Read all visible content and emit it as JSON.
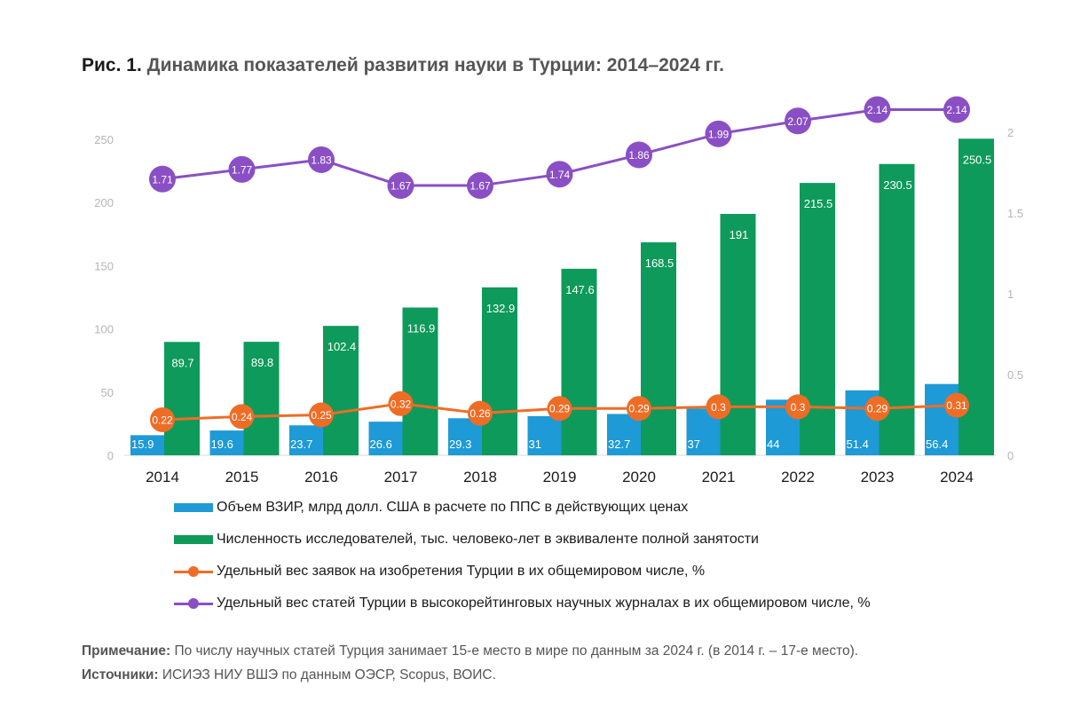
{
  "title": {
    "prefix": "Рис. 1.",
    "text": "Динамика показателей развития науки в Турции: 2014–2024 гг."
  },
  "chart_data": {
    "type": "bar",
    "categories": [
      "2014",
      "2015",
      "2016",
      "2017",
      "2018",
      "2019",
      "2020",
      "2021",
      "2022",
      "2023",
      "2024"
    ],
    "left_axis": {
      "ylim": [
        0,
        250
      ],
      "ticks": [
        "0",
        "50",
        "100",
        "150",
        "200",
        "250"
      ]
    },
    "right_axis": {
      "ylim": [
        0,
        2
      ],
      "ticks": [
        "0",
        "0.5",
        "1",
        "1.5",
        "2"
      ]
    },
    "grid": false,
    "legend_position": "bottom",
    "series": [
      {
        "name": "Объем ВЗИР, млрд долл. США в расчете по ППС в действующих ценах",
        "type": "bar",
        "axis": "left",
        "color": "#1e9ad6",
        "values": [
          15.9,
          19.6,
          23.7,
          26.6,
          29.3,
          31,
          32.7,
          37,
          44,
          51.4,
          56.4
        ],
        "labels": [
          "15.9",
          "19.6",
          "23.7",
          "26.6",
          "29.3",
          "31",
          "32.7",
          "37",
          "44",
          "51.4",
          "56.4"
        ]
      },
      {
        "name": "Численность исследователей, тыс. человеко-лет в эквиваленте полной занятости",
        "type": "bar",
        "axis": "left",
        "color": "#0e9a5a",
        "values": [
          89.7,
          89.8,
          102.4,
          116.9,
          132.9,
          147.6,
          168.5,
          191,
          215.5,
          230.5,
          250.5
        ],
        "labels": [
          "89.7",
          "89.8",
          "102.4",
          "116.9",
          "132.9",
          "147.6",
          "168.5",
          "191",
          "215.5",
          "230.5",
          "250.5"
        ]
      },
      {
        "name": "Удельный вес заявок на изобретения Турции в их общемировом числе, %",
        "type": "line",
        "axis": "right",
        "color": "#ee6d26",
        "values": [
          0.22,
          0.24,
          0.25,
          0.32,
          0.26,
          0.29,
          0.29,
          0.3,
          0.3,
          0.29,
          0.31
        ],
        "labels": [
          "0.22",
          "0.24",
          "0.25",
          "0.32",
          "0.26",
          "0.29",
          "0.29",
          "0.3",
          "0.3",
          "0.29",
          "0.31"
        ]
      },
      {
        "name": "Удельный вес статей Турции в высокорейтинговых научных журналах в их общемировом числе, %",
        "type": "line",
        "axis": "right",
        "color": "#8a4fc4",
        "values": [
          1.71,
          1.77,
          1.83,
          1.67,
          1.67,
          1.74,
          1.86,
          1.99,
          2.07,
          2.14,
          2.14
        ],
        "labels": [
          "1.71",
          "1.77",
          "1.83",
          "1.67",
          "1.67",
          "1.74",
          "1.86",
          "1.99",
          "2.07",
          "2.14",
          "2.14"
        ]
      }
    ]
  },
  "notes": {
    "note_label": "Примечание:",
    "note_text": " По числу научных статей Турция занимает 15-е место в мире по данным за 2024 г. (в 2014 г. – 17-е место).",
    "source_label": "Источники:",
    "source_text": " ИСИЭЗ НИУ ВШЭ по данным ОЭСР, Scopus, ВОИС."
  }
}
